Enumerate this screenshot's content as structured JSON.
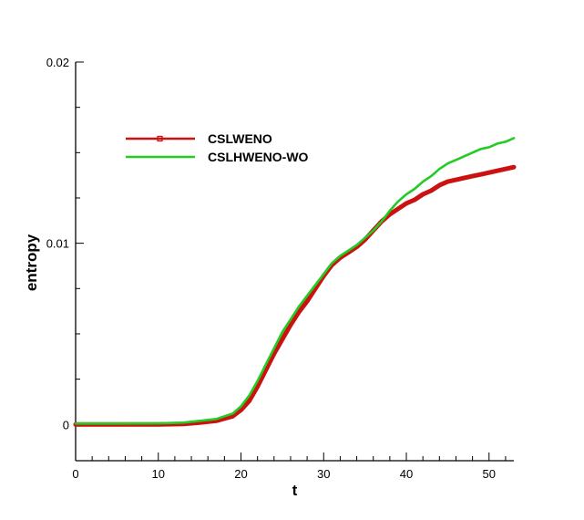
{
  "chart_data": {
    "type": "line",
    "title": "",
    "xlabel": "t",
    "ylabel": "entropy",
    "xlim": [
      0,
      53
    ],
    "ylim": [
      -0.002,
      0.02
    ],
    "x_ticks": [
      0,
      10,
      20,
      30,
      40,
      50
    ],
    "x_tick_labels": [
      "0",
      "10",
      "20",
      "30",
      "40",
      "50"
    ],
    "y_ticks": [
      0,
      0.01,
      0.02
    ],
    "y_tick_labels": [
      "0",
      "0.01",
      "0.02"
    ],
    "grid": false,
    "legend_position": "upper-left",
    "series": [
      {
        "name": "CSLWENO",
        "color": "#cc1111",
        "marker": "square",
        "points": [
          [
            0,
            0
          ],
          [
            5,
            0
          ],
          [
            10,
            0
          ],
          [
            13,
            3e-05
          ],
          [
            15,
            0.0001
          ],
          [
            17,
            0.0002
          ],
          [
            19,
            0.00045
          ],
          [
            20,
            0.0008
          ],
          [
            21,
            0.0013
          ],
          [
            22,
            0.0021
          ],
          [
            23,
            0.003
          ],
          [
            24,
            0.0039
          ],
          [
            25,
            0.0047
          ],
          [
            26,
            0.0055
          ],
          [
            27,
            0.0062
          ],
          [
            28,
            0.0068
          ],
          [
            29,
            0.0075
          ],
          [
            30,
            0.0082
          ],
          [
            31,
            0.0088
          ],
          [
            32,
            0.0092
          ],
          [
            33,
            0.0095
          ],
          [
            34,
            0.0098
          ],
          [
            35,
            0.0102
          ],
          [
            36,
            0.0107
          ],
          [
            37,
            0.0112
          ],
          [
            38,
            0.0116
          ],
          [
            39,
            0.0119
          ],
          [
            40,
            0.0122
          ],
          [
            41,
            0.0124
          ],
          [
            42,
            0.0127
          ],
          [
            43,
            0.0129
          ],
          [
            44,
            0.0132
          ],
          [
            45,
            0.0134
          ],
          [
            46,
            0.0135
          ],
          [
            47,
            0.0136
          ],
          [
            48,
            0.0137
          ],
          [
            49,
            0.0138
          ],
          [
            50,
            0.0139
          ],
          [
            51,
            0.014
          ],
          [
            52,
            0.0141
          ],
          [
            53,
            0.0142
          ]
        ]
      },
      {
        "name": "CSLHWENO-WO",
        "color": "#22cc22",
        "marker": "none",
        "points": [
          [
            0,
            5e-05
          ],
          [
            5,
            5e-05
          ],
          [
            10,
            6e-05
          ],
          [
            13,
            0.0001
          ],
          [
            15,
            0.0002
          ],
          [
            17,
            0.0003
          ],
          [
            19,
            0.0006
          ],
          [
            20,
            0.001
          ],
          [
            21,
            0.0016
          ],
          [
            22,
            0.0024
          ],
          [
            23,
            0.0033
          ],
          [
            24,
            0.0042
          ],
          [
            25,
            0.0051
          ],
          [
            26,
            0.0058
          ],
          [
            27,
            0.0065
          ],
          [
            28,
            0.0071
          ],
          [
            29,
            0.0077
          ],
          [
            30,
            0.0083
          ],
          [
            31,
            0.0089
          ],
          [
            32,
            0.0093
          ],
          [
            33,
            0.0096
          ],
          [
            34,
            0.0099
          ],
          [
            35,
            0.0103
          ],
          [
            36,
            0.0107
          ],
          [
            37,
            0.0112
          ],
          [
            38,
            0.0118
          ],
          [
            39,
            0.0123
          ],
          [
            40,
            0.0127
          ],
          [
            41,
            0.013
          ],
          [
            42,
            0.0134
          ],
          [
            43,
            0.0137
          ],
          [
            44,
            0.0141
          ],
          [
            45,
            0.0144
          ],
          [
            46,
            0.0146
          ],
          [
            47,
            0.0148
          ],
          [
            48,
            0.015
          ],
          [
            49,
            0.0152
          ],
          [
            50,
            0.0153
          ],
          [
            51,
            0.0155
          ],
          [
            52,
            0.0156
          ],
          [
            53,
            0.0158
          ]
        ]
      }
    ]
  }
}
